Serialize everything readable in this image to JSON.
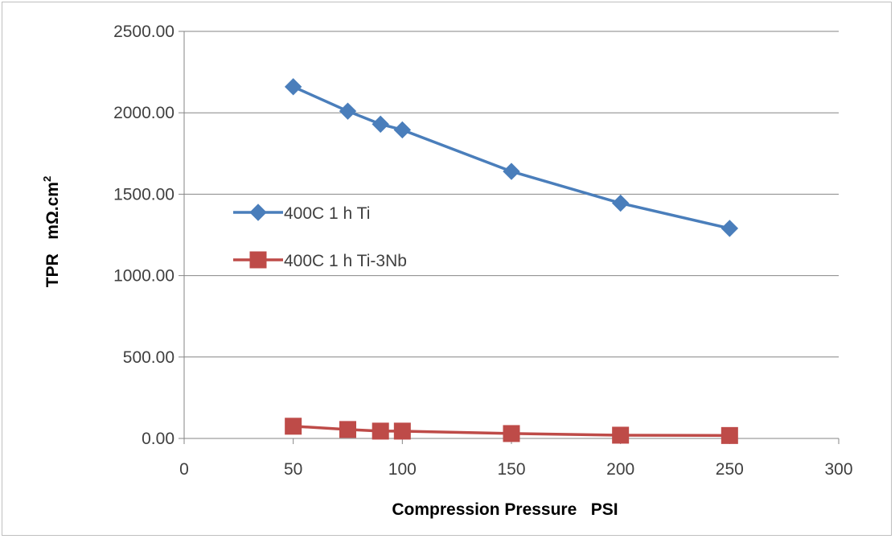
{
  "chart_data": {
    "type": "line",
    "title": "",
    "xlabel": "Compression Pressure   PSI",
    "ylabel_main": "TPR   mΩ.cm",
    "ylabel_sup": "2",
    "xlim": [
      0,
      300
    ],
    "ylim": [
      0,
      2500
    ],
    "xticks": [
      "0",
      "50",
      "100",
      "150",
      "200",
      "250",
      "300"
    ],
    "yticks": [
      "0.00",
      "500.00",
      "1000.00",
      "1500.00",
      "2000.00",
      "2500.00"
    ],
    "grid": "horizontal",
    "legend_position": "center-left",
    "series": [
      {
        "name": "400C 1 h Ti",
        "color": "#4a7ebb",
        "marker": "diamond",
        "x": [
          50,
          75,
          90,
          100,
          150,
          200,
          250
        ],
        "y": [
          2160,
          2010,
          1930,
          1895,
          1640,
          1445,
          1290
        ]
      },
      {
        "name": "400C 1 h Ti-3Nb",
        "color": "#be4b48",
        "marker": "square",
        "x": [
          50,
          75,
          90,
          100,
          150,
          200,
          250
        ],
        "y": [
          75,
          55,
          45,
          45,
          30,
          20,
          18
        ]
      }
    ]
  }
}
